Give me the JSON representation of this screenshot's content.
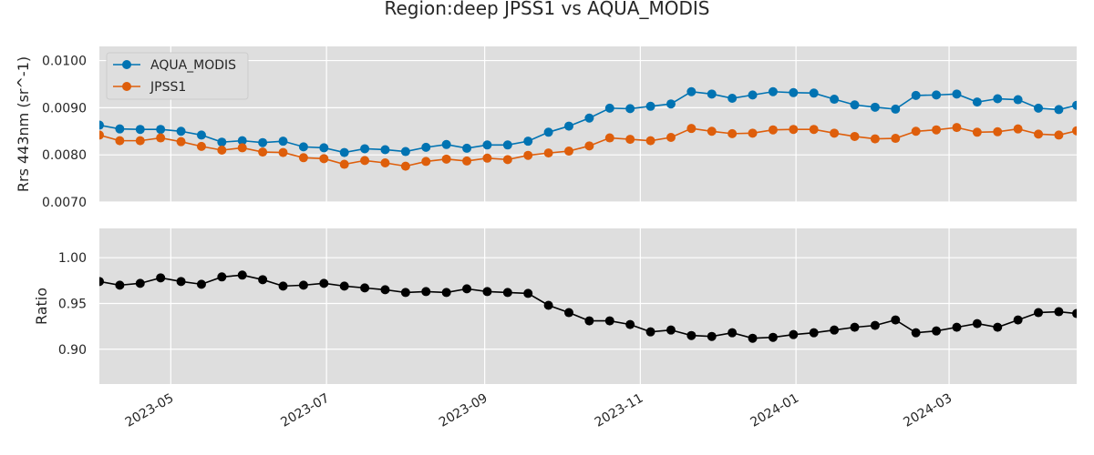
{
  "title": "Region:deep JPSS1 vs AQUA_MODIS",
  "chart_data": [
    {
      "type": "line",
      "ylabel": "Rrs 443nm (sr^-1)",
      "ylim": [
        0.007,
        0.0103
      ],
      "yticks": [
        "0.0070",
        "0.0080",
        "0.0090",
        "0.0100"
      ],
      "xlim": [
        "2023-04-03",
        "2024-04-20"
      ],
      "grid": true,
      "legend": "top-left",
      "x": [
        "2023-04-03",
        "2023-04-11",
        "2023-04-19",
        "2023-04-27",
        "2023-05-05",
        "2023-05-13",
        "2023-05-21",
        "2023-05-29",
        "2023-06-06",
        "2023-06-14",
        "2023-06-22",
        "2023-06-30",
        "2023-07-08",
        "2023-07-16",
        "2023-07-24",
        "2023-08-01",
        "2023-08-09",
        "2023-08-17",
        "2023-08-25",
        "2023-09-02",
        "2023-09-10",
        "2023-09-18",
        "2023-09-26",
        "2023-10-04",
        "2023-10-12",
        "2023-10-20",
        "2023-10-28",
        "2023-11-05",
        "2023-11-13",
        "2023-11-21",
        "2023-11-29",
        "2023-12-07",
        "2023-12-15",
        "2023-12-23",
        "2023-12-31",
        "2024-01-08",
        "2024-01-16",
        "2024-01-24",
        "2024-02-01",
        "2024-02-09",
        "2024-02-17",
        "2024-02-25",
        "2024-03-04",
        "2024-03-12",
        "2024-03-20",
        "2024-03-28",
        "2024-04-05",
        "2024-04-13",
        "2024-04-20"
      ],
      "series": [
        {
          "name": "AQUA_MODIS",
          "color": "#0173b2",
          "values": [
            0.00863,
            0.00855,
            0.00854,
            0.00854,
            0.0085,
            0.00842,
            0.00827,
            0.0083,
            0.00826,
            0.00829,
            0.00817,
            0.00815,
            0.00805,
            0.00813,
            0.00811,
            0.00807,
            0.00816,
            0.00822,
            0.00814,
            0.00821,
            0.00821,
            0.00829,
            0.00848,
            0.00861,
            0.00878,
            0.00899,
            0.00898,
            0.00903,
            0.00908,
            0.00934,
            0.00929,
            0.0092,
            0.00927,
            0.00934,
            0.00932,
            0.00931,
            0.00918,
            0.00906,
            0.00901,
            0.00897,
            0.00926,
            0.00927,
            0.00929,
            0.00912,
            0.00919,
            0.00917,
            0.00899,
            0.00896,
            0.00905
          ]
        },
        {
          "name": "JPSS1",
          "color": "#de5e0b",
          "values": [
            0.00842,
            0.0083,
            0.0083,
            0.00836,
            0.00828,
            0.00818,
            0.0081,
            0.00815,
            0.00806,
            0.00805,
            0.00794,
            0.00792,
            0.0078,
            0.00788,
            0.00783,
            0.00776,
            0.00786,
            0.00791,
            0.00787,
            0.00793,
            0.0079,
            0.00799,
            0.00804,
            0.00808,
            0.00819,
            0.00836,
            0.00833,
            0.0083,
            0.00837,
            0.00856,
            0.0085,
            0.00845,
            0.00846,
            0.00853,
            0.00854,
            0.00854,
            0.00846,
            0.00839,
            0.00834,
            0.00835,
            0.0085,
            0.00853,
            0.00858,
            0.00848,
            0.00849,
            0.00855,
            0.00844,
            0.00842,
            0.00851
          ]
        }
      ]
    },
    {
      "type": "line",
      "ylabel": "Ratio",
      "ylim": [
        0.862,
        1.032
      ],
      "yticks": [
        "0.90",
        "0.95",
        "1.00"
      ],
      "xlim": [
        "2023-04-03",
        "2024-04-20"
      ],
      "xticks": [
        "2023-05",
        "2023-07",
        "2023-09",
        "2023-11",
        "2024-01",
        "2024-03"
      ],
      "grid": true,
      "x": [
        "2023-04-03",
        "2023-04-11",
        "2023-04-19",
        "2023-04-27",
        "2023-05-05",
        "2023-05-13",
        "2023-05-21",
        "2023-05-29",
        "2023-06-06",
        "2023-06-14",
        "2023-06-22",
        "2023-06-30",
        "2023-07-08",
        "2023-07-16",
        "2023-07-24",
        "2023-08-01",
        "2023-08-09",
        "2023-08-17",
        "2023-08-25",
        "2023-09-02",
        "2023-09-10",
        "2023-09-18",
        "2023-09-26",
        "2023-10-04",
        "2023-10-12",
        "2023-10-20",
        "2023-10-28",
        "2023-11-05",
        "2023-11-13",
        "2023-11-21",
        "2023-11-29",
        "2023-12-07",
        "2023-12-15",
        "2023-12-23",
        "2023-12-31",
        "2024-01-08",
        "2024-01-16",
        "2024-01-24",
        "2024-02-01",
        "2024-02-09",
        "2024-02-17",
        "2024-02-25",
        "2024-03-04",
        "2024-03-12",
        "2024-03-20",
        "2024-03-28",
        "2024-04-05",
        "2024-04-13",
        "2024-04-20"
      ],
      "series": [
        {
          "color": "#000000",
          "values": [
            0.974,
            0.97,
            0.972,
            0.978,
            0.974,
            0.971,
            0.979,
            0.981,
            0.976,
            0.969,
            0.97,
            0.972,
            0.969,
            0.967,
            0.965,
            0.962,
            0.963,
            0.962,
            0.966,
            0.963,
            0.962,
            0.961,
            0.948,
            0.94,
            0.931,
            0.931,
            0.927,
            0.919,
            0.921,
            0.915,
            0.914,
            0.918,
            0.912,
            0.913,
            0.916,
            0.918,
            0.921,
            0.924,
            0.926,
            0.932,
            0.918,
            0.92,
            0.924,
            0.928,
            0.924,
            0.932,
            0.94,
            0.941,
            0.939
          ]
        }
      ]
    }
  ]
}
